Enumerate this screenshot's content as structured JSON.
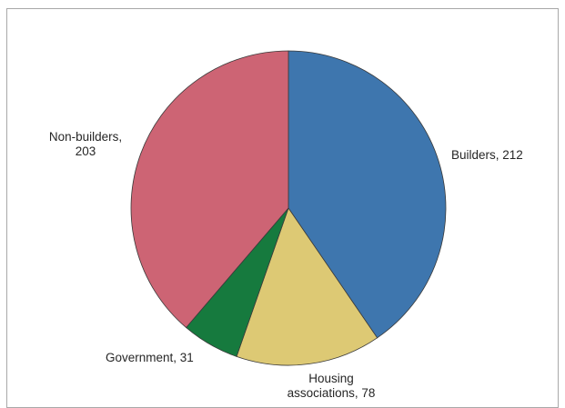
{
  "chart_data": {
    "type": "pie",
    "title": "",
    "start_angle_deg": 0,
    "direction": "clockwise",
    "slices": [
      {
        "name": "Builders",
        "value": 212,
        "color": "#3e76ae"
      },
      {
        "name": "Housing associations",
        "value": 78,
        "color": "#ddc974"
      },
      {
        "name": "Government",
        "value": 31,
        "color": "#167a3e"
      },
      {
        "name": "Non-builders",
        "value": 203,
        "color": "#cd6474"
      }
    ],
    "labels": {
      "builders_line1": "Builders, 212",
      "housing_line1": "Housing",
      "housing_line2": "associations, 78",
      "government_line1": "Government, 31",
      "nonbuilders_line1": "Non-builders,",
      "nonbuilders_line2": "203"
    }
  }
}
